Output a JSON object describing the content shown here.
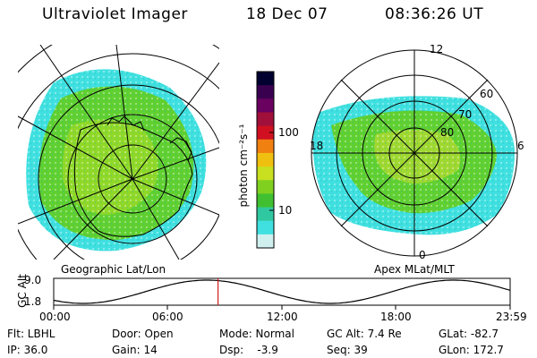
{
  "header": {
    "instrument": "Ultraviolet Imager",
    "date": "18 Dec 07",
    "time": "08:36:26 UT"
  },
  "panels": {
    "geo_label": "Geographic Lat/Lon",
    "apex_label": "Apex MLat/MLT"
  },
  "colorbar": {
    "label": "photon cm⁻²s⁻¹",
    "ticks": [
      "100",
      "10"
    ],
    "colors": [
      "#000030",
      "#3a0050",
      "#6a0060",
      "#a0103a",
      "#d01020",
      "#f08010",
      "#f0c010",
      "#c8e020",
      "#80d020",
      "#40c030",
      "#30c8a0",
      "#40e0e0",
      "#d0f0f0"
    ]
  },
  "apex": {
    "mlt_labels": [
      "12",
      "6",
      "0",
      "18"
    ],
    "mlat_labels": [
      "60",
      "70",
      "80"
    ]
  },
  "altitude_plot": {
    "ylabel": "GC Alt",
    "yticks": [
      "9.0",
      "1.8"
    ],
    "xticks": [
      "00:00",
      "06:00",
      "12:00",
      "18:00",
      "23:59"
    ],
    "marker_time_fraction": 0.36
  },
  "info": {
    "flt": "Flt: LBHL",
    "ip": "IP: 36.0",
    "door": "Door: Open",
    "gain": "Gain: 14",
    "mode": "Mode: Normal",
    "dsp": "Dsp:    -3.9",
    "gcalt": "GC Alt: 7.4 Re",
    "seq": "Seq: 39",
    "glat": "GLat: -82.7",
    "glon": "GLon: 172.7"
  }
}
